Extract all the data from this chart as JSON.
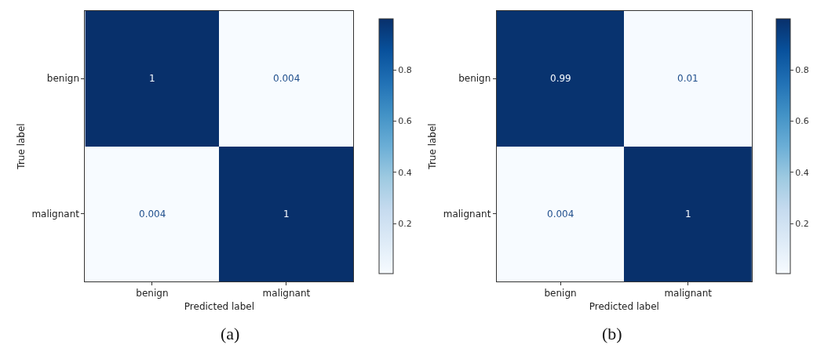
{
  "chart_data": [
    {
      "type": "heatmap",
      "categories": [
        "benign",
        "malignant"
      ],
      "y_categories": [
        "benign",
        "malignant"
      ],
      "cells": [
        [
          1,
          0.004
        ],
        [
          0.004,
          1
        ]
      ],
      "data_labels": true,
      "xlabel": "Predicted label",
      "ylabel": "True label",
      "clim": [
        0.004,
        1
      ],
      "cticks": [
        0.2,
        0.4,
        0.6,
        0.8
      ],
      "annotations": [
        "(a)"
      ]
    },
    {
      "type": "heatmap",
      "categories": [
        "benign",
        "malignant"
      ],
      "y_categories": [
        "benign",
        "malignant"
      ],
      "cells": [
        [
          0.99,
          0.01
        ],
        [
          0.004,
          1
        ]
      ],
      "data_labels": true,
      "xlabel": "Predicted label",
      "ylabel": "True label",
      "clim": [
        0.004,
        1
      ],
      "cticks": [
        0.2,
        0.4,
        0.6,
        0.8
      ],
      "annotations": [
        "(b)"
      ]
    }
  ]
}
